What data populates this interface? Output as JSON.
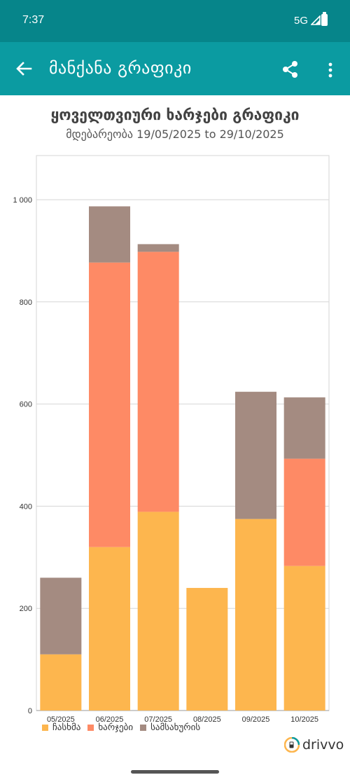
{
  "status_bar": {
    "time": "7:37",
    "network": "5G"
  },
  "app_bar": {
    "title": "მანქანა გრაფიკი",
    "back_icon": "arrow-back-icon",
    "share_icon": "share-icon",
    "more_icon": "more-vert-icon"
  },
  "chart": {
    "title": "ყოველთვიური ხარჯები გრაფიკი",
    "subtitle": "მდებარეობა 19/05/2025 to 29/10/2025"
  },
  "chart_data": {
    "type": "bar",
    "stacked": true,
    "categories": [
      "05/2025",
      "06/2025",
      "07/2025",
      "08/2025",
      "09/2025",
      "10/2025"
    ],
    "series": [
      {
        "name": "ჩასხმა",
        "color": "#fdb64e",
        "values": [
          110,
          320,
          389,
          240,
          375,
          283
        ]
      },
      {
        "name": "ხარჯები",
        "color": "#fe8a65",
        "values": [
          0,
          557,
          509,
          0,
          0,
          210
        ]
      },
      {
        "name": "სამსახურის",
        "color": "#a48b81",
        "values": [
          150,
          110,
          15,
          0,
          249,
          120
        ]
      }
    ],
    "y_ticks": [
      "0",
      "200",
      "400",
      "600",
      "800",
      "1 000"
    ],
    "y_tick_values": [
      0,
      200,
      400,
      600,
      800,
      1000
    ],
    "ylim": [
      0,
      1000
    ],
    "grid": true,
    "legend_position": "bottom-left"
  },
  "brand": {
    "name": "drivvo"
  }
}
